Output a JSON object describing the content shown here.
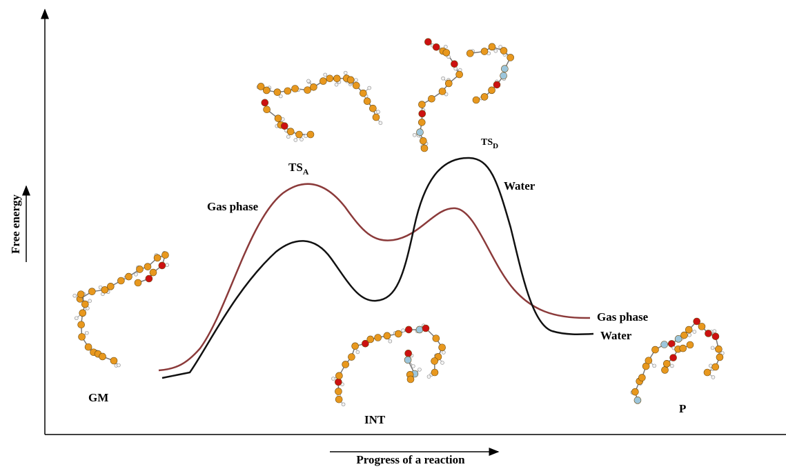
{
  "axes": {
    "y_label": "Free energy",
    "x_label": "Progress of a reaction"
  },
  "states": {
    "gm": "GM",
    "ts_a": {
      "main": "TS",
      "sub": "A"
    },
    "int": "INT",
    "ts_d": {
      "main": "TS",
      "sub": "D"
    },
    "p": "P"
  },
  "curve_labels": {
    "gas_left": "Gas phase",
    "water_left": "Water",
    "gas_right": "Gas phase",
    "water_right": "Water"
  }
}
